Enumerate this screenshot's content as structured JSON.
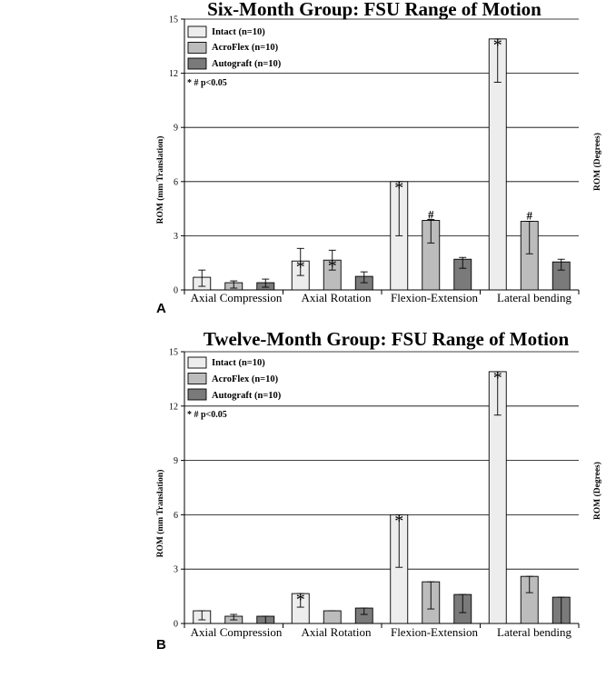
{
  "colors": {
    "intact": "#ededed",
    "acroflex": "#bcbcbc",
    "autograft": "#7a7a7a",
    "grid": "#000000"
  },
  "chart_data": [
    {
      "type": "bar",
      "panel_label": "A",
      "title": "Six-Month Group: FSU Range of Motion",
      "ylabel_left": "ROM (mm Translation)",
      "ylabel_right": "ROM (Degrees)",
      "ylim": [
        0,
        15
      ],
      "yticks": [
        "0",
        "3",
        "6",
        "9",
        "12",
        "15"
      ],
      "grid": true,
      "legend_position": "top-left",
      "significance_note": "* # p<0.05",
      "categories": [
        "Axial Compression",
        "Axial Rotation",
        "Flexion-Extension",
        "Lateral bending"
      ],
      "series": [
        {
          "name": "Intact (n=10)",
          "color_key": "intact",
          "values": [
            0.7,
            1.6,
            6.0,
            13.9
          ],
          "err_low": [
            0.2,
            0.8,
            3.0,
            11.5
          ],
          "err_high": [
            1.1,
            2.3,
            6.0,
            13.9
          ],
          "marks": [
            "",
            "*",
            "*",
            "*"
          ]
        },
        {
          "name": "AcroFlex (n=10)",
          "color_key": "acroflex",
          "values": [
            0.4,
            1.65,
            3.85,
            3.8
          ],
          "err_low": [
            0.1,
            1.1,
            2.6,
            2.0
          ],
          "err_high": [
            0.5,
            2.2,
            3.9,
            3.8
          ],
          "marks": [
            "",
            "*",
            "#",
            "#"
          ]
        },
        {
          "name": "Autograft (n=10)",
          "color_key": "autograft",
          "values": [
            0.4,
            0.75,
            1.7,
            1.55
          ],
          "err_low": [
            0.15,
            0.4,
            1.2,
            1.1
          ],
          "err_high": [
            0.6,
            1.0,
            1.8,
            1.7
          ],
          "marks": [
            "",
            "",
            "",
            ""
          ]
        }
      ]
    },
    {
      "type": "bar",
      "panel_label": "B",
      "title": "Twelve-Month Group: FSU Range of Motion",
      "ylabel_left": "ROM (mm Translation)",
      "ylabel_right": "ROM (Degrees)",
      "ylim": [
        0,
        15
      ],
      "yticks": [
        "0",
        "3",
        "6",
        "9",
        "12",
        "15"
      ],
      "grid": true,
      "legend_position": "top-left",
      "significance_note": "* # p<0.05",
      "categories": [
        "Axial Compression",
        "Axial Rotation",
        "Flexion-Extension",
        "Lateral bending"
      ],
      "series": [
        {
          "name": "Intact (n=10)",
          "color_key": "intact",
          "values": [
            0.7,
            1.65,
            6.0,
            13.9
          ],
          "err_low": [
            0.2,
            0.9,
            3.1,
            11.5
          ],
          "err_high": [
            0.7,
            1.65,
            6.0,
            13.9
          ],
          "marks": [
            "",
            "*",
            "*",
            "*"
          ]
        },
        {
          "name": "AcroFlex (n=10)",
          "color_key": "acroflex",
          "values": [
            0.4,
            0.7,
            2.3,
            2.6
          ],
          "err_low": [
            0.2,
            0.7,
            0.8,
            1.7
          ],
          "err_high": [
            0.5,
            0.7,
            2.3,
            2.6
          ],
          "marks": [
            "",
            "",
            "",
            ""
          ]
        },
        {
          "name": "Autograft (n=10)",
          "color_key": "autograft",
          "values": [
            0.4,
            0.85,
            1.6,
            1.45
          ],
          "err_low": [
            0.0,
            0.5,
            0.6,
            0.0
          ],
          "err_high": [
            0.4,
            0.85,
            1.6,
            1.45
          ],
          "marks": [
            "",
            "",
            "",
            ""
          ]
        }
      ]
    }
  ]
}
